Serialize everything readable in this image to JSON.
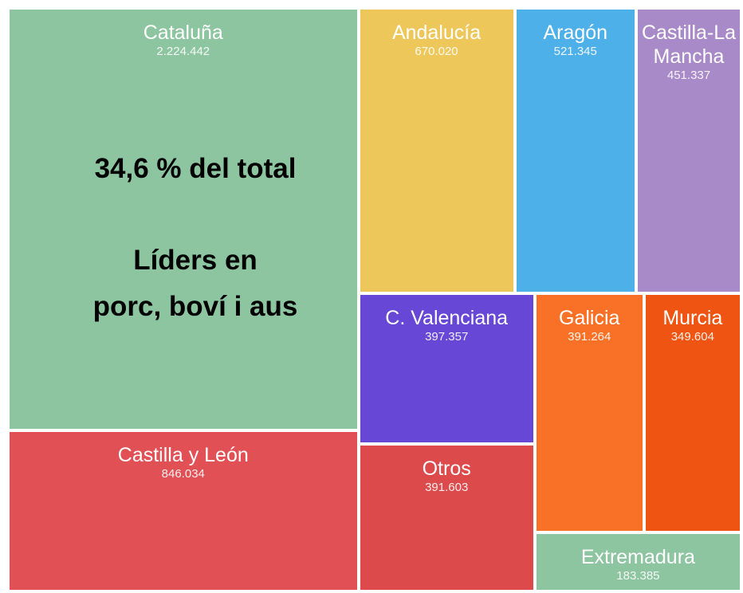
{
  "chart_data": {
    "type": "treemap",
    "categories": [
      "Cataluña",
      "Castilla y León",
      "Andalucía",
      "Aragón",
      "Castilla-La Mancha",
      "C. Valenciana",
      "Otros",
      "Galicia",
      "Murcia",
      "Extremadura"
    ],
    "values": [
      2224442,
      846034,
      670020,
      521345,
      451337,
      397357,
      391603,
      391264,
      349604,
      183385
    ],
    "value_labels": [
      "2.224.442",
      "846.034",
      "670.020",
      "521.345",
      "451.337",
      "397.357",
      "391.603",
      "391.264",
      "349.604",
      "183.385"
    ],
    "colors": [
      "#8cc5a0",
      "#e05055",
      "#eec75a",
      "#4db0e8",
      "#a98ac9",
      "#6748d6",
      "#dd4a4c",
      "#f87126",
      "#ef5412",
      "#8cc5a0"
    ],
    "annotations": [
      "34,6 % del total",
      "Líders en",
      "porc, boví i aus"
    ]
  }
}
